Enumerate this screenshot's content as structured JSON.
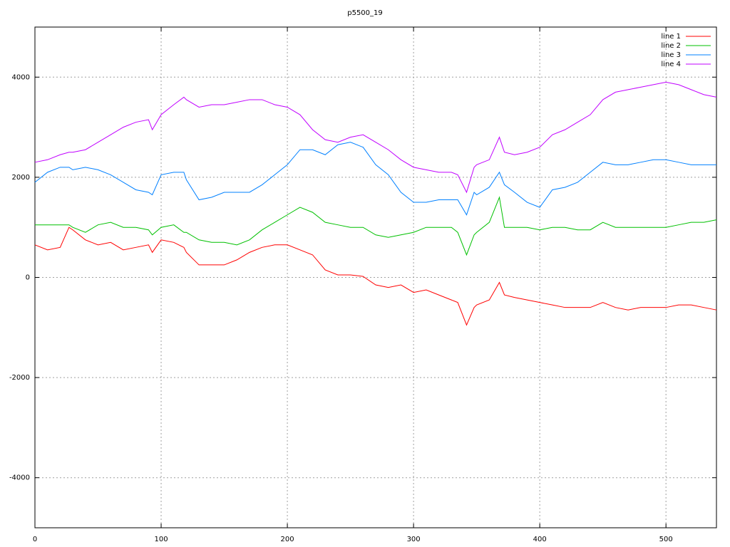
{
  "chart_data": {
    "type": "line",
    "title": "p5500_19",
    "x": [
      0,
      10,
      20,
      27,
      30,
      40,
      50,
      60,
      70,
      80,
      90,
      93,
      100,
      110,
      118,
      120,
      130,
      140,
      150,
      160,
      170,
      180,
      190,
      200,
      210,
      220,
      230,
      240,
      250,
      260,
      270,
      280,
      290,
      300,
      310,
      320,
      330,
      335,
      342,
      348,
      350,
      360,
      368,
      372,
      380,
      390,
      400,
      410,
      420,
      430,
      440,
      450,
      460,
      470,
      480,
      490,
      500,
      510,
      520,
      530,
      540
    ],
    "series": [
      {
        "name": "line 1",
        "color": "#ff0000",
        "values": [
          650,
          550,
          600,
          1000,
          950,
          750,
          650,
          700,
          550,
          600,
          650,
          500,
          750,
          700,
          600,
          500,
          250,
          250,
          250,
          350,
          500,
          600,
          650,
          650,
          550,
          450,
          150,
          50,
          50,
          20,
          -150,
          -200,
          -150,
          -300,
          -250,
          -350,
          -450,
          -500,
          -950,
          -600,
          -550,
          -450,
          -100,
          -350,
          -400,
          -450,
          -500,
          -550,
          -600,
          -600,
          -600,
          -500,
          -600,
          -650,
          -600,
          -600,
          -600,
          -550,
          -550,
          -600,
          -650
        ]
      },
      {
        "name": "line 2",
        "color": "#00c000",
        "values": [
          1050,
          1050,
          1050,
          1050,
          1000,
          900,
          1050,
          1100,
          1000,
          1000,
          950,
          850,
          1000,
          1050,
          900,
          900,
          750,
          700,
          700,
          650,
          750,
          950,
          1100,
          1250,
          1400,
          1300,
          1100,
          1050,
          1000,
          1000,
          850,
          800,
          850,
          900,
          1000,
          1000,
          1000,
          900,
          450,
          850,
          900,
          1100,
          1600,
          1000,
          1000,
          1000,
          950,
          1000,
          1000,
          950,
          950,
          1100,
          1000,
          1000,
          1000,
          1000,
          1000,
          1050,
          1100,
          1100,
          1150
        ]
      },
      {
        "name": "line 3",
        "color": "#0080ff",
        "values": [
          1900,
          2100,
          2200,
          2200,
          2150,
          2200,
          2150,
          2050,
          1900,
          1750,
          1700,
          1650,
          2050,
          2100,
          2100,
          1950,
          1550,
          1600,
          1700,
          1700,
          1700,
          1850,
          2050,
          2250,
          2550,
          2550,
          2450,
          2650,
          2700,
          2600,
          2250,
          2050,
          1700,
          1500,
          1500,
          1550,
          1550,
          1550,
          1250,
          1700,
          1650,
          1800,
          2100,
          1850,
          1700,
          1500,
          1400,
          1750,
          1800,
          1900,
          2100,
          2300,
          2250,
          2250,
          2300,
          2350,
          2350,
          2300,
          2250,
          2250,
          2250
        ]
      },
      {
        "name": "line 4",
        "color": "#c000ff",
        "values": [
          2300,
          2350,
          2450,
          2500,
          2500,
          2550,
          2700,
          2850,
          3000,
          3100,
          3150,
          2950,
          3250,
          3450,
          3600,
          3550,
          3400,
          3450,
          3450,
          3500,
          3550,
          3550,
          3450,
          3400,
          3250,
          2950,
          2750,
          2700,
          2800,
          2850,
          2700,
          2550,
          2350,
          2200,
          2150,
          2100,
          2100,
          2050,
          1700,
          2200,
          2250,
          2350,
          2800,
          2500,
          2450,
          2500,
          2600,
          2850,
          2950,
          3100,
          3250,
          3550,
          3700,
          3750,
          3800,
          3850,
          3900,
          3850,
          3750,
          3650,
          3600
        ]
      }
    ],
    "xlim": [
      0,
      540
    ],
    "ylim": [
      -5000,
      5000
    ],
    "xticks": [
      0,
      100,
      200,
      300,
      400,
      500
    ],
    "yticks": [
      -4000,
      -2000,
      0,
      2000,
      4000
    ],
    "grid": true,
    "legend": "top-right"
  }
}
